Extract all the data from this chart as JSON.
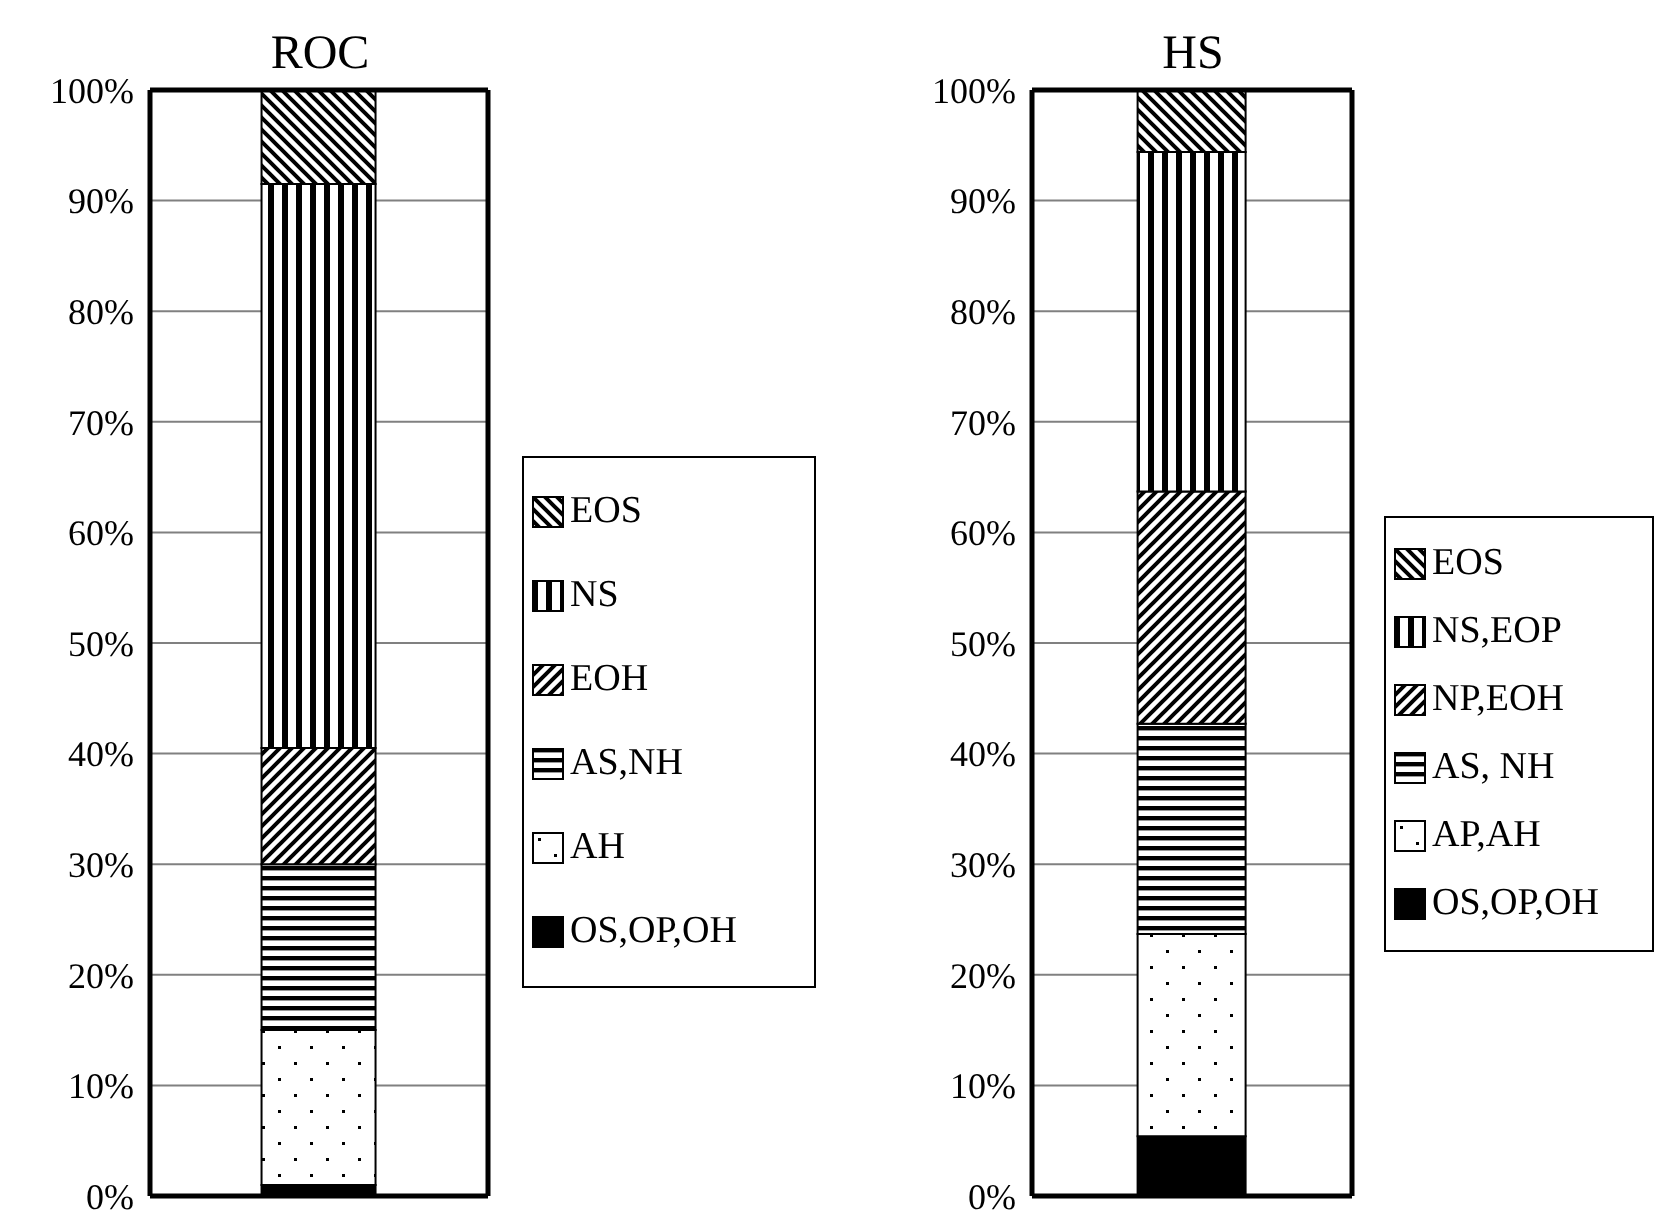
{
  "chart_data": [
    {
      "type": "bar",
      "title": "ROC",
      "categories": [
        null
      ],
      "stacked": true,
      "grid": "y",
      "legend": "right",
      "tick_labels": "y",
      "ylim": [
        0,
        100
      ],
      "yticks": [
        {
          "value": 0,
          "label": "0%"
        },
        {
          "value": 10,
          "label": "10%"
        },
        {
          "value": 20,
          "label": "20%"
        },
        {
          "value": 30,
          "label": "30%"
        },
        {
          "value": 40,
          "label": "40%"
        },
        {
          "value": 50,
          "label": "50%"
        },
        {
          "value": 60,
          "label": "60%"
        },
        {
          "value": 70,
          "label": "70%"
        },
        {
          "value": 80,
          "label": "80%"
        },
        {
          "value": 90,
          "label": "90%"
        },
        {
          "value": 100,
          "label": "100%"
        }
      ],
      "series": [
        {
          "name": "OS,OP,OH",
          "color": "#000000",
          "values": [
            1
          ]
        },
        {
          "name": "AH",
          "color": "#000000",
          "values": [
            14
          ]
        },
        {
          "name": "AS,NH",
          "color": "#000000",
          "values": [
            15
          ]
        },
        {
          "name": "EOH",
          "color": "#000000",
          "values": [
            10.5
          ]
        },
        {
          "name": "NS",
          "color": "#000000",
          "values": [
            51
          ]
        },
        {
          "name": "EOS",
          "color": "#000000",
          "values": [
            8.5
          ]
        }
      ]
    },
    {
      "type": "bar",
      "title": "HS",
      "categories": [
        null
      ],
      "stacked": true,
      "grid": "y",
      "legend": "right",
      "tick_labels": "y",
      "ylim": [
        0,
        100
      ],
      "yticks": [
        {
          "value": 0,
          "label": "0%"
        },
        {
          "value": 10,
          "label": "10%"
        },
        {
          "value": 20,
          "label": "20%"
        },
        {
          "value": 30,
          "label": "30%"
        },
        {
          "value": 40,
          "label": "40%"
        },
        {
          "value": 50,
          "label": "50%"
        },
        {
          "value": 60,
          "label": "60%"
        },
        {
          "value": 70,
          "label": "70%"
        },
        {
          "value": 80,
          "label": "80%"
        },
        {
          "value": 90,
          "label": "90%"
        },
        {
          "value": 100,
          "label": "100%"
        }
      ],
      "series": [
        {
          "name": "OS,OP,OH",
          "color": "#000000",
          "values": [
            5.4
          ]
        },
        {
          "name": "AP,AH",
          "color": "#000000",
          "values": [
            18.3
          ]
        },
        {
          "name": "AS, NH",
          "color": "#000000",
          "values": [
            19
          ]
        },
        {
          "name": "NP,EOH",
          "color": "#000000",
          "values": [
            21
          ]
        },
        {
          "name": "NS,EOP",
          "color": "#000000",
          "values": [
            30.7
          ]
        },
        {
          "name": "EOS",
          "color": "#000000",
          "values": [
            5.6
          ]
        }
      ]
    }
  ]
}
